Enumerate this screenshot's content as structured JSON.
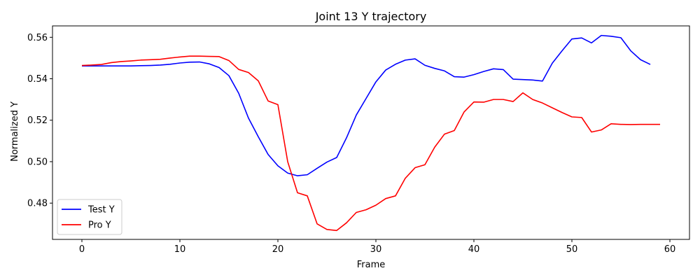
{
  "chart_data": {
    "type": "line",
    "title": "Joint 13 Y trajectory",
    "xlabel": "Frame",
    "ylabel": "Normalized Y",
    "xlim": [
      -3,
      62
    ],
    "ylim": [
      0.4625,
      0.5655
    ],
    "xticks": [
      0,
      10,
      20,
      30,
      40,
      50,
      60
    ],
    "yticks": [
      0.48,
      0.5,
      0.52,
      0.54,
      0.56
    ],
    "ytick_labels": [
      "0.48",
      "0.50",
      "0.52",
      "0.54",
      "0.56"
    ],
    "grid": false,
    "legend_position": "lower-left",
    "series": [
      {
        "name": "Test Y",
        "color": "#0000ff",
        "x": [
          0,
          1,
          2,
          3,
          4,
          5,
          6,
          7,
          8,
          9,
          10,
          11,
          12,
          13,
          14,
          15,
          16,
          17,
          18,
          19,
          20,
          21,
          22,
          23,
          24,
          25,
          26,
          27,
          28,
          29,
          30,
          31,
          32,
          33,
          34,
          35,
          36,
          37,
          38,
          39,
          40,
          41,
          42,
          43,
          44,
          45,
          46,
          47,
          48,
          49,
          50,
          51,
          52,
          53,
          54,
          55,
          56,
          57,
          58
        ],
        "values": [
          0.5462,
          0.5462,
          0.5462,
          0.5462,
          0.5462,
          0.5462,
          0.5463,
          0.5464,
          0.5466,
          0.547,
          0.5476,
          0.548,
          0.5481,
          0.5472,
          0.5454,
          0.5415,
          0.533,
          0.521,
          0.512,
          0.5035,
          0.498,
          0.4945,
          0.4932,
          0.4937,
          0.4968,
          0.4998,
          0.502,
          0.5115,
          0.5225,
          0.5305,
          0.5385,
          0.5442,
          0.547,
          0.549,
          0.5496,
          0.5465,
          0.545,
          0.5438,
          0.541,
          0.5408,
          0.542,
          0.5435,
          0.5448,
          0.5444,
          0.5398,
          0.5396,
          0.5394,
          0.5389,
          0.5475,
          0.5535,
          0.5592,
          0.5597,
          0.5573,
          0.5609,
          0.5605,
          0.5598,
          0.5535,
          0.5492,
          0.5469
        ]
      },
      {
        "name": "Pro Y",
        "color": "#ff0000",
        "x": [
          0,
          1,
          2,
          3,
          4,
          5,
          6,
          7,
          8,
          9,
          10,
          11,
          12,
          13,
          14,
          15,
          16,
          17,
          18,
          19,
          20,
          21,
          22,
          23,
          24,
          25,
          26,
          27,
          28,
          29,
          30,
          31,
          32,
          33,
          34,
          35,
          36,
          37,
          38,
          39,
          40,
          41,
          42,
          43,
          44,
          45,
          46,
          47,
          48,
          49,
          50,
          51,
          52,
          53,
          54,
          55,
          56,
          57,
          58,
          59
        ],
        "values": [
          0.5464,
          0.5466,
          0.5469,
          0.5478,
          0.5483,
          0.5486,
          0.549,
          0.5492,
          0.5494,
          0.55,
          0.5505,
          0.5509,
          0.5509,
          0.5508,
          0.5507,
          0.5488,
          0.5445,
          0.543,
          0.539,
          0.5293,
          0.5275,
          0.5,
          0.485,
          0.4835,
          0.47,
          0.4673,
          0.4668,
          0.4705,
          0.4755,
          0.4768,
          0.479,
          0.4822,
          0.4835,
          0.492,
          0.4971,
          0.4985,
          0.507,
          0.5133,
          0.515,
          0.524,
          0.5288,
          0.5287,
          0.53,
          0.53,
          0.529,
          0.5332,
          0.53,
          0.5283,
          0.526,
          0.5237,
          0.5216,
          0.5213,
          0.5143,
          0.5153,
          0.5183,
          0.518,
          0.5179,
          0.518,
          0.518,
          0.518
        ]
      }
    ]
  }
}
